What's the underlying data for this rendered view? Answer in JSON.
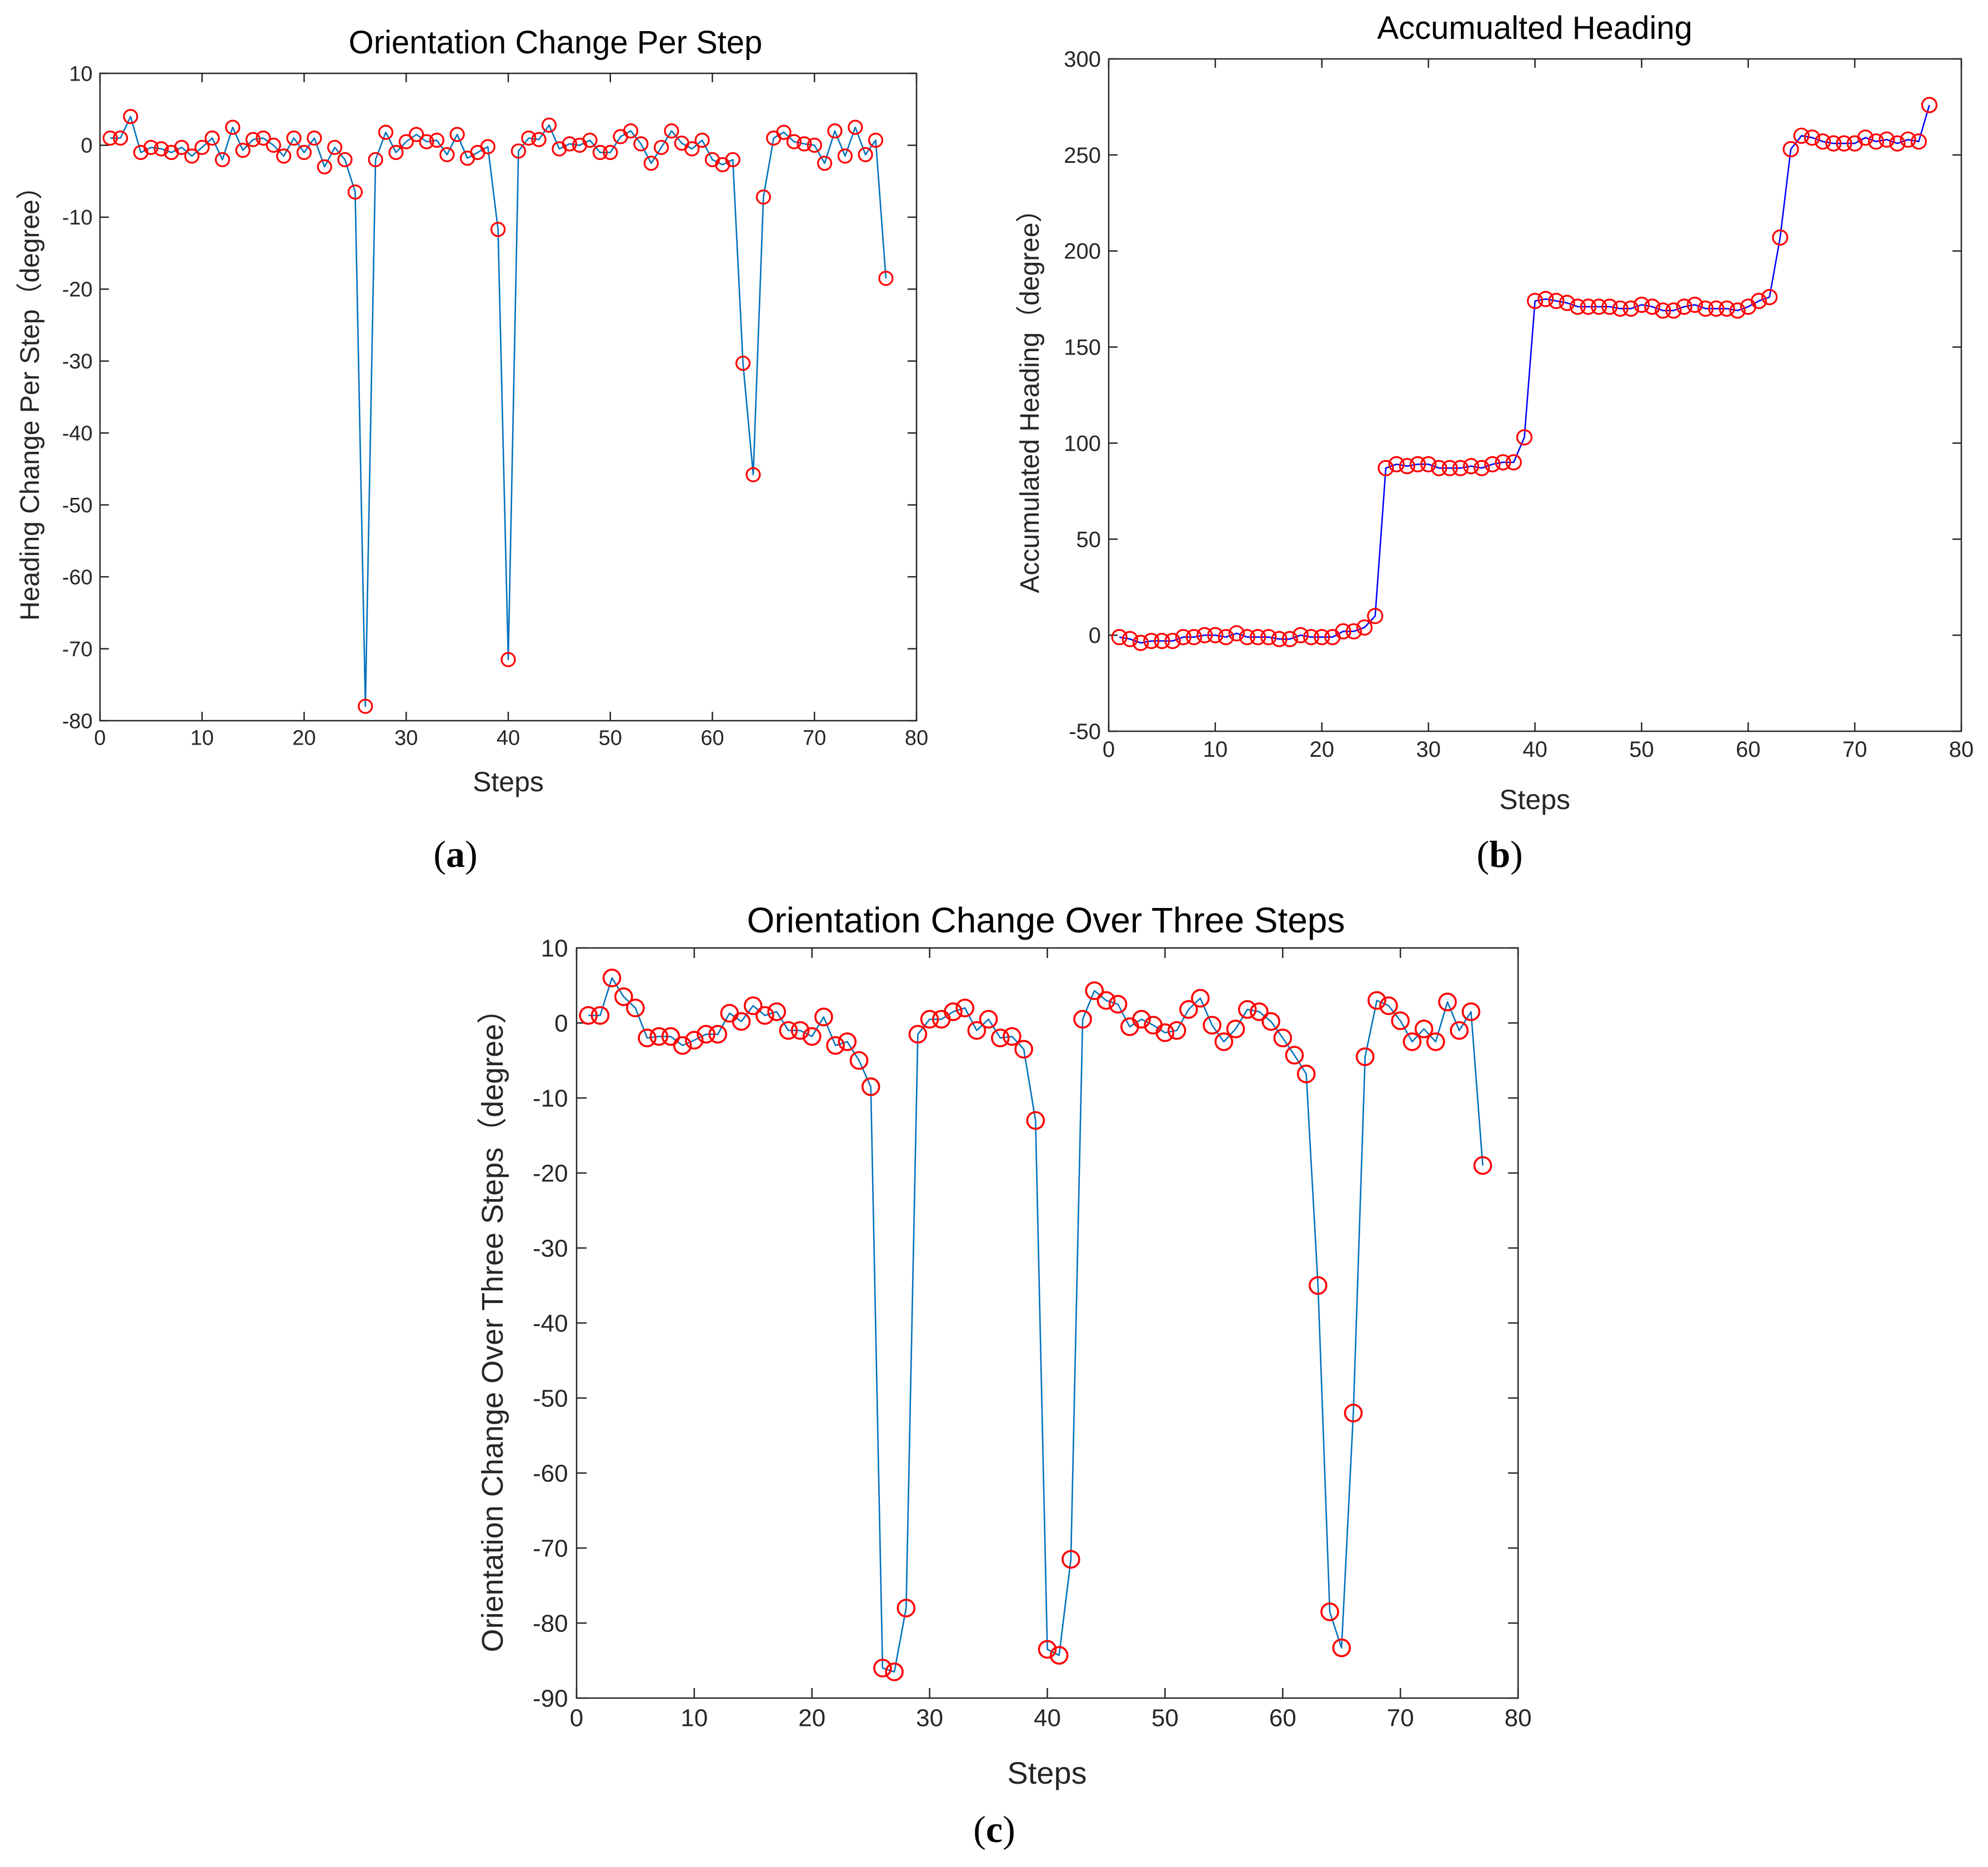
{
  "colors": {
    "line_a": "#0072BD",
    "line_b": "#0000FF",
    "line_c": "#0072BD",
    "marker": "#FF0000",
    "axes": "#262626",
    "frame": "#262626",
    "background": "#FFFFFF"
  },
  "chart_data": [
    {
      "id": "a",
      "type": "line",
      "panel_label": "a",
      "title": "Orientation Change Per Step",
      "xlabel": "Steps",
      "ylabel": "Heading Change Per Step（degree）",
      "xlim": [
        0,
        80
      ],
      "ylim": [
        -80,
        10
      ],
      "xticks": [
        0,
        10,
        20,
        30,
        40,
        50,
        60,
        70,
        80
      ],
      "yticks": [
        10,
        0,
        -10,
        -20,
        -30,
        -40,
        -50,
        -60,
        -70,
        -80
      ],
      "marker": "circle",
      "grid": false,
      "series": [
        {
          "name": "Orientation change per step",
          "x": [
            1,
            2,
            3,
            4,
            5,
            6,
            7,
            8,
            9,
            10,
            11,
            12,
            13,
            14,
            15,
            16,
            17,
            18,
            19,
            20,
            21,
            22,
            23,
            24,
            25,
            26,
            27,
            28,
            29,
            30,
            31,
            32,
            33,
            34,
            35,
            36,
            37,
            38,
            39,
            40,
            41,
            42,
            43,
            44,
            45,
            46,
            47,
            48,
            49,
            50,
            51,
            52,
            53,
            54,
            55,
            56,
            57,
            58,
            59,
            60,
            61,
            62,
            63,
            64,
            65,
            66,
            67,
            68,
            69,
            70,
            71,
            72,
            73,
            74,
            75,
            76,
            77
          ],
          "y": [
            1,
            1,
            4,
            -1,
            -0.3,
            -0.5,
            -1,
            -0.3,
            -1.5,
            -0.3,
            1,
            -2,
            2.5,
            -0.7,
            0.8,
            1,
            0,
            -1.5,
            1,
            -1,
            1,
            -3,
            -0.3,
            -2,
            -6.5,
            -78,
            -2,
            1.8,
            -1,
            0.5,
            1.5,
            0.5,
            0.7,
            -1.3,
            1.5,
            -1.8,
            -1,
            -0.2,
            -11.7,
            -71.5,
            -0.8,
            1,
            0.8,
            2.8,
            -0.5,
            0.2,
            0,
            0.7,
            -1,
            -1,
            1.2,
            2,
            0.2,
            -2.5,
            -0.3,
            2,
            0.3,
            -0.5,
            0.7,
            -2,
            -2.7,
            -2,
            -30.3,
            -45.8,
            -7.2,
            1,
            1.8,
            0.5,
            0.2,
            0,
            -2.5,
            2,
            -1.5,
            2.5,
            -1.3,
            0.7,
            -18.5
          ]
        }
      ]
    },
    {
      "id": "b",
      "type": "line",
      "panel_label": "b",
      "title": "Accumualted Heading",
      "xlabel": "Steps",
      "ylabel": "Accumulated Heading（degree）",
      "xlim": [
        0,
        80
      ],
      "ylim": [
        -50,
        300
      ],
      "xticks": [
        0,
        10,
        20,
        30,
        40,
        50,
        60,
        70,
        80
      ],
      "yticks": [
        300,
        250,
        200,
        150,
        100,
        50,
        0,
        -50
      ],
      "marker": "circle",
      "grid": false,
      "series": [
        {
          "name": "Accumulated heading",
          "x": [
            1,
            2,
            3,
            4,
            5,
            6,
            7,
            8,
            9,
            10,
            11,
            12,
            13,
            14,
            15,
            16,
            17,
            18,
            19,
            20,
            21,
            22,
            23,
            24,
            25,
            26,
            27,
            28,
            29,
            30,
            31,
            32,
            33,
            34,
            35,
            36,
            37,
            38,
            39,
            40,
            41,
            42,
            43,
            44,
            45,
            46,
            47,
            48,
            49,
            50,
            51,
            52,
            53,
            54,
            55,
            56,
            57,
            58,
            59,
            60,
            61,
            62,
            63,
            64,
            65,
            66,
            67,
            68,
            69,
            70,
            71,
            72,
            73,
            74,
            75,
            76,
            77
          ],
          "y": [
            -1,
            -2,
            -4,
            -3,
            -3,
            -3,
            -1,
            -1,
            0,
            0,
            -1,
            1,
            -1,
            -1,
            -1,
            -2,
            -2,
            0,
            -1,
            -1,
            -1,
            2,
            2,
            4,
            10,
            87,
            89,
            88,
            89,
            89,
            87,
            87,
            87,
            88,
            87,
            89,
            90,
            90,
            103,
            174,
            175,
            174,
            173,
            171,
            171,
            171,
            171,
            170,
            170,
            172,
            171,
            169,
            169,
            171,
            172,
            170,
            170,
            170,
            169,
            171,
            174,
            176,
            207,
            253,
            260,
            259,
            257,
            256,
            256,
            256,
            259,
            257,
            258,
            256,
            258,
            257,
            276
          ]
        }
      ]
    },
    {
      "id": "c",
      "type": "line",
      "panel_label": "c",
      "title": "Orientation Change Over Three Steps",
      "xlabel": "Steps",
      "ylabel": "Orientation Change Over Three Steps（degree）",
      "xlim": [
        0,
        80
      ],
      "ylim": [
        -90,
        10
      ],
      "xticks": [
        0,
        10,
        20,
        30,
        40,
        50,
        60,
        70,
        80
      ],
      "yticks": [
        10,
        0,
        -10,
        -20,
        -30,
        -40,
        -50,
        -60,
        -70,
        -80,
        -90
      ],
      "marker": "circle",
      "grid": false,
      "series": [
        {
          "name": "Orientation change over three steps",
          "x": [
            1,
            2,
            3,
            4,
            5,
            6,
            7,
            8,
            9,
            10,
            11,
            12,
            13,
            14,
            15,
            16,
            17,
            18,
            19,
            20,
            21,
            22,
            23,
            24,
            25,
            26,
            27,
            28,
            29,
            30,
            31,
            32,
            33,
            34,
            35,
            36,
            37,
            38,
            39,
            40,
            41,
            42,
            43,
            44,
            45,
            46,
            47,
            48,
            49,
            50,
            51,
            52,
            53,
            54,
            55,
            56,
            57,
            58,
            59,
            60,
            61,
            62,
            63,
            64,
            65,
            66,
            67,
            68,
            69,
            70,
            71,
            72,
            73,
            74,
            75,
            76,
            77
          ],
          "y": [
            1,
            1,
            6,
            3.5,
            2,
            -2,
            -1.8,
            -1.8,
            -3,
            -2.3,
            -1.5,
            -1.5,
            1.3,
            0.2,
            2.3,
            1,
            1.5,
            -1,
            -1,
            -1.8,
            0.8,
            -3,
            -2.5,
            -5,
            -8.5,
            -86,
            -86.5,
            -78,
            -1.5,
            0.5,
            0.5,
            1.5,
            2,
            -1,
            0.5,
            -2,
            -1.8,
            -3.5,
            -13,
            -83.5,
            -84.3,
            -71.5,
            0.5,
            4.3,
            3,
            2.5,
            -0.5,
            0.5,
            -0.3,
            -1.3,
            -1,
            1.8,
            3.3,
            -0.3,
            -2.5,
            -0.8,
            1.8,
            1.5,
            0.2,
            -2,
            -4.3,
            -6.8,
            -35,
            -78.5,
            -83.3,
            -52,
            -4.5,
            3,
            2.3,
            0.3,
            -2.5,
            -0.8,
            -2.5,
            2.8,
            -1,
            1.5,
            -19
          ]
        }
      ]
    }
  ]
}
